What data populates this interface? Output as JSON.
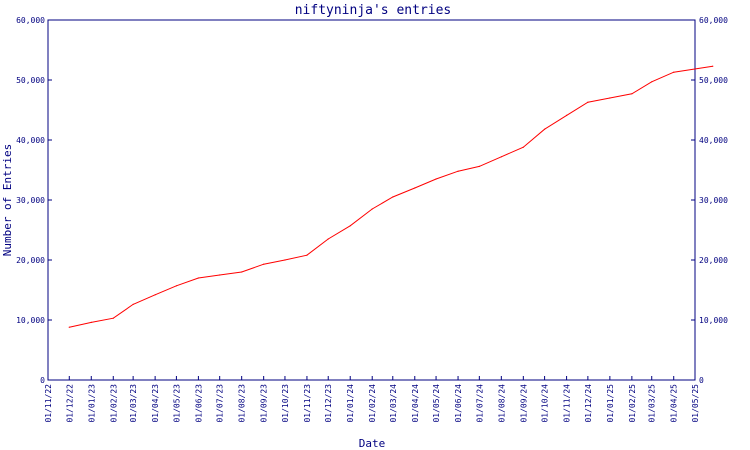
{
  "chart_data": {
    "type": "line",
    "title": "niftyninja's entries",
    "xlabel": "Date",
    "ylabel": "Number of Entries",
    "ylim": [
      0,
      60000
    ],
    "y_ticks": [
      0,
      10000,
      20000,
      30000,
      40000,
      50000,
      60000
    ],
    "y_tick_labels": [
      "0",
      "10,000",
      "20,000",
      "30,000",
      "40,000",
      "50,000",
      "60,000"
    ],
    "x_tick_labels": [
      "01/11/22",
      "01/12/22",
      "01/01/23",
      "01/02/23",
      "01/03/23",
      "01/04/23",
      "01/05/23",
      "01/06/23",
      "01/07/23",
      "01/08/23",
      "01/09/23",
      "01/10/23",
      "01/11/23",
      "01/12/23",
      "01/01/24",
      "01/02/24",
      "01/03/24",
      "01/04/24",
      "01/05/24",
      "01/06/24",
      "01/07/24",
      "01/08/24",
      "01/09/24",
      "01/10/24",
      "01/11/24",
      "01/12/24",
      "01/01/25",
      "01/02/25",
      "01/03/25",
      "01/04/25",
      "01/05/25"
    ],
    "xlim": [
      "01/11/22",
      "01/05/25"
    ],
    "grid": false,
    "series": [
      {
        "color": "#ff0000",
        "x": [
          "01/12/22",
          "01/01/23",
          "01/02/23",
          "01/03/23",
          "01/04/23",
          "01/05/23",
          "01/06/23",
          "01/07/23",
          "01/08/23",
          "01/09/23",
          "01/10/23",
          "01/11/23",
          "01/12/23",
          "01/01/24",
          "01/02/24",
          "01/03/24",
          "01/04/24",
          "01/05/24",
          "01/06/24",
          "01/07/24",
          "01/08/24",
          "01/09/24",
          "01/10/24",
          "01/11/24",
          "01/12/24",
          "01/01/25",
          "01/02/25",
          "01/03/25",
          "01/04/25",
          "26/05/25"
        ],
        "values": [
          8800,
          9600,
          10300,
          12600,
          14200,
          15700,
          17000,
          17500,
          18000,
          19300,
          20000,
          20800,
          23500,
          25700,
          28500,
          30500,
          32000,
          33500,
          34800,
          35600,
          37200,
          38800,
          41800,
          44100,
          46300,
          47000,
          47700,
          49700,
          51300,
          52300
        ]
      }
    ]
  }
}
